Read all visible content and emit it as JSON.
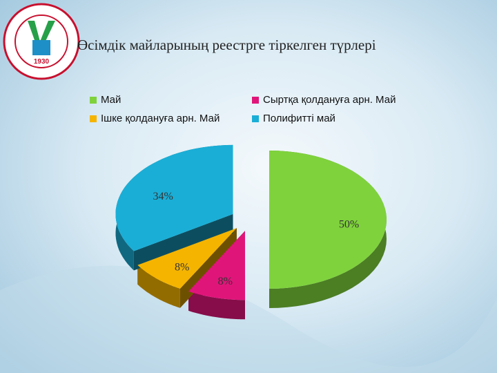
{
  "logo": {
    "year": "1930"
  },
  "chart_data": {
    "type": "pie",
    "title": "Өсімдік майларының реестрге тіркелген түрлері",
    "categories": [
      "Май",
      "Сыртқа қолдануға арн. Май",
      "Ішке қолдануға арн. Май",
      "Полифитті май"
    ],
    "values": [
      50,
      8,
      8,
      34
    ],
    "value_labels": [
      "50%",
      "8%",
      "8%",
      "34%"
    ],
    "colors": [
      "#7fd23c",
      "#e0157a",
      "#f5b400",
      "#1aaed6"
    ],
    "legend": "top"
  }
}
